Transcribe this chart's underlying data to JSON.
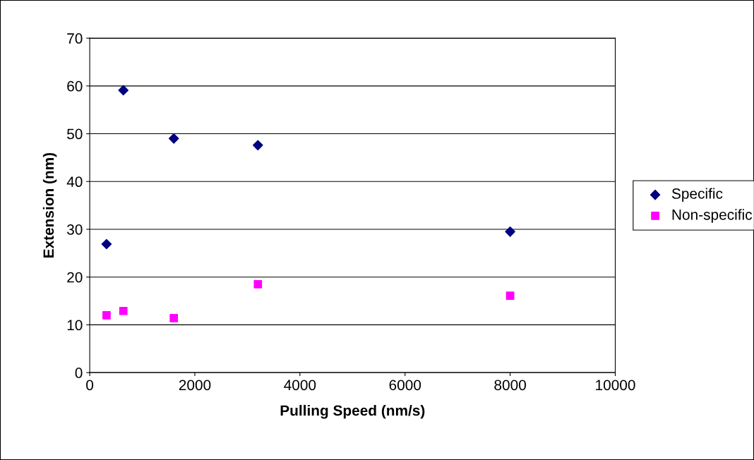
{
  "chart_data": {
    "type": "scatter",
    "xlabel": "Pulling Speed (nm/s)",
    "ylabel": "Extension (nm)",
    "x": [
      320,
      640,
      1600,
      3200,
      8000
    ],
    "series": [
      {
        "name": "Specific",
        "color": "#000080",
        "marker": "diamond",
        "values": [
          26.9,
          59.1,
          49.0,
          47.6,
          29.5
        ]
      },
      {
        "name": "Non-specific",
        "color": "#ff00ff",
        "marker": "square",
        "values": [
          12.0,
          12.9,
          11.4,
          18.5,
          16.1
        ]
      }
    ],
    "xlim": [
      0,
      10000
    ],
    "xticks": [
      0,
      2000,
      4000,
      6000,
      8000,
      10000
    ],
    "ylim": [
      0,
      70
    ],
    "yticks": [
      0,
      10,
      20,
      30,
      40,
      50,
      60,
      70
    ],
    "grid": "y",
    "legend": "right"
  }
}
